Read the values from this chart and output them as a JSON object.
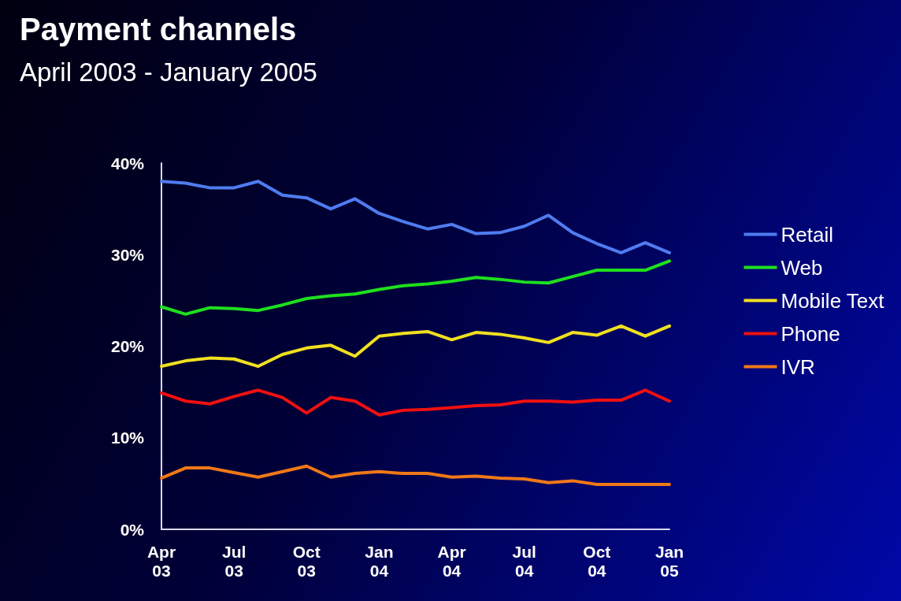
{
  "chart_data": {
    "type": "line",
    "title": "Payment channels",
    "subtitle": "April 2003 - January 2005",
    "categories": [
      "Apr\n03",
      null,
      null,
      "Jul\n03",
      null,
      null,
      "Oct\n03",
      null,
      null,
      "Jan\n04",
      null,
      null,
      "Apr\n04",
      null,
      null,
      "Jul\n04",
      null,
      null,
      "Oct\n04",
      null,
      null,
      "Jan\n05"
    ],
    "series": [
      {
        "name": "Retail",
        "color": "#4f7cf0",
        "values": [
          38.0,
          37.8,
          37.3,
          37.3,
          38.0,
          36.5,
          36.2,
          35.0,
          36.1,
          34.5,
          33.6,
          32.8,
          33.3,
          32.3,
          32.4,
          33.1,
          34.3,
          32.4,
          31.2,
          30.2,
          31.3,
          30.2
        ]
      },
      {
        "name": "Web",
        "color": "#1ee01e",
        "values": [
          24.3,
          23.5,
          24.2,
          24.1,
          23.9,
          24.5,
          25.2,
          25.5,
          25.7,
          26.2,
          26.6,
          26.8,
          27.1,
          27.5,
          27.3,
          27.0,
          26.9,
          27.6,
          28.3,
          28.3,
          28.3,
          29.3
        ]
      },
      {
        "name": "Mobile Text",
        "color": "#f0e020",
        "values": [
          17.8,
          18.4,
          18.7,
          18.6,
          17.8,
          19.1,
          19.8,
          20.1,
          18.9,
          21.1,
          21.4,
          21.6,
          20.7,
          21.5,
          21.3,
          20.9,
          20.4,
          21.5,
          21.2,
          22.2,
          21.1,
          22.2
        ]
      },
      {
        "name": "Phone",
        "color": "#f01010",
        "values": [
          14.9,
          14.0,
          13.7,
          14.5,
          15.2,
          14.4,
          12.7,
          14.4,
          14.0,
          12.5,
          13.0,
          13.1,
          13.3,
          13.5,
          13.6,
          14.0,
          14.0,
          13.9,
          14.1,
          14.1,
          15.2,
          14.0
        ]
      },
      {
        "name": "IVR",
        "color": "#f07818",
        "values": [
          5.6,
          6.7,
          6.7,
          6.2,
          5.7,
          6.3,
          6.9,
          5.7,
          6.1,
          6.3,
          6.1,
          6.1,
          5.7,
          5.8,
          5.6,
          5.5,
          5.1,
          5.3,
          4.9,
          4.9,
          4.9,
          4.9
        ]
      }
    ],
    "ylim": [
      0,
      40
    ],
    "yticks": [
      {
        "value": 0,
        "label": "0%"
      },
      {
        "value": 10,
        "label": "10%"
      },
      {
        "value": 20,
        "label": "20%"
      },
      {
        "value": 30,
        "label": "30%"
      },
      {
        "value": 40,
        "label": "40%"
      }
    ],
    "grid": false,
    "legend": "right",
    "marker": "none",
    "line_style": "solid"
  }
}
